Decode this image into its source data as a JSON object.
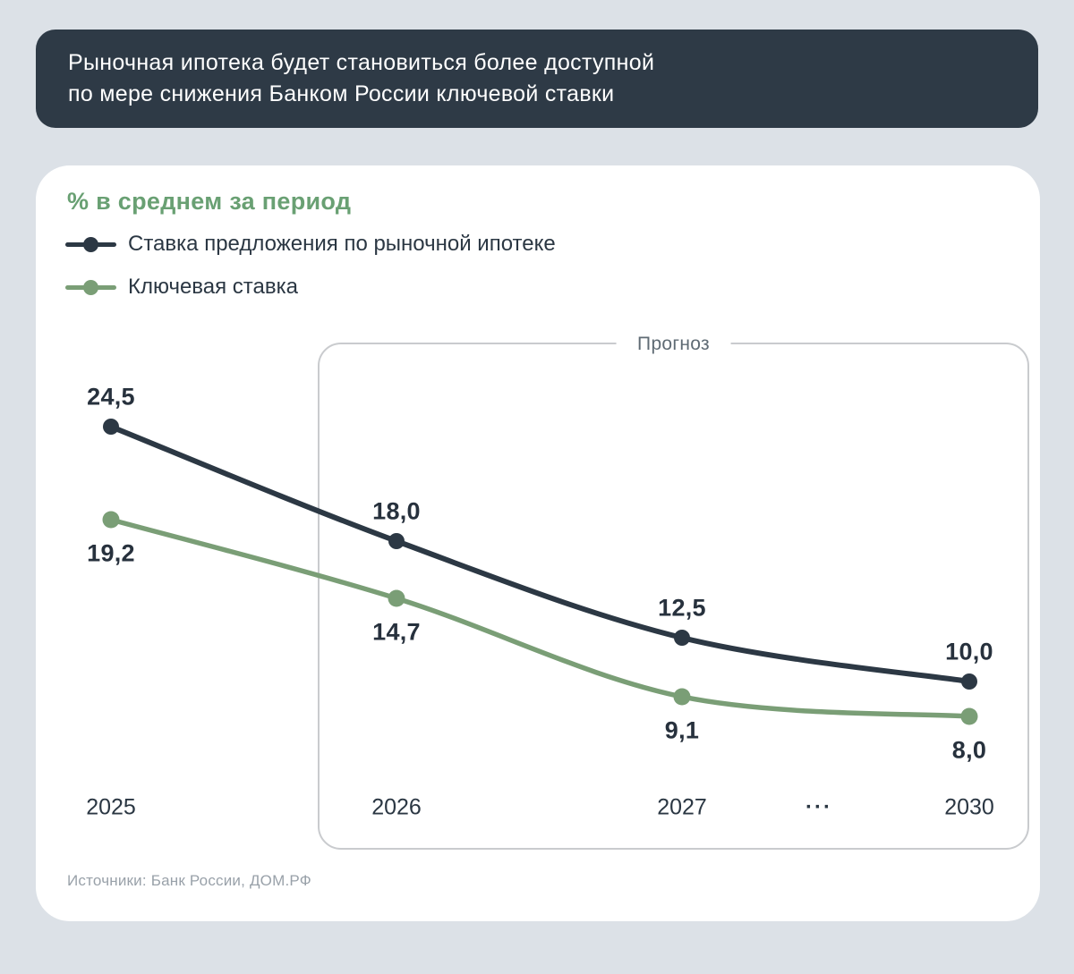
{
  "colors": {
    "page_bg": "#DCE1E7",
    "header_bg": "#2E3A46",
    "header_text": "#FFFFFF",
    "card_bg": "#FFFFFF",
    "title_green": "#69A073",
    "dark_series": "#2C3844",
    "green_series": "#7A9E76",
    "forecast_border": "#C9CBCE",
    "forecast_label_text": "#5F6B74",
    "axis_text": "#2B3743",
    "value_text": "#27313D",
    "source_text": "#99A1A9"
  },
  "header": {
    "title_line1": "Рыночная ипотека будет становиться более доступной",
    "title_line2": "по мере снижения Банком России ключевой ставки"
  },
  "chart": {
    "unit_label": "% в среднем за период",
    "forecast_label": "Прогноз",
    "ellipsis": "···",
    "source": "Источники: Банк России, ДОМ.РФ"
  },
  "chart_data": {
    "type": "line",
    "title": "% в среднем за период",
    "categories": [
      "2025",
      "2026",
      "2027",
      "2030"
    ],
    "x_axis_display": [
      "2025",
      "2026",
      "2027",
      "···",
      "2030"
    ],
    "series": [
      {
        "name": "Ставка предложения по рыночной ипотеке",
        "color": "#2C3844",
        "values": [
          24.5,
          18.0,
          12.5,
          10.0
        ],
        "labels": [
          "24,5",
          "18,0",
          "12,5",
          "10,0"
        ],
        "label_position": "above"
      },
      {
        "name": "Ключевая ставка",
        "color": "#7A9E76",
        "values": [
          19.2,
          14.7,
          9.1,
          8.0
        ],
        "labels": [
          "19,2",
          "14,7",
          "9,1",
          "8,0"
        ],
        "label_position": "below"
      }
    ],
    "forecast_region": {
      "label": "Прогноз",
      "covers_categories": [
        "2026",
        "2027",
        "2030"
      ]
    },
    "legend_position": "top-left",
    "grid": false,
    "y_axis_visible": false
  }
}
